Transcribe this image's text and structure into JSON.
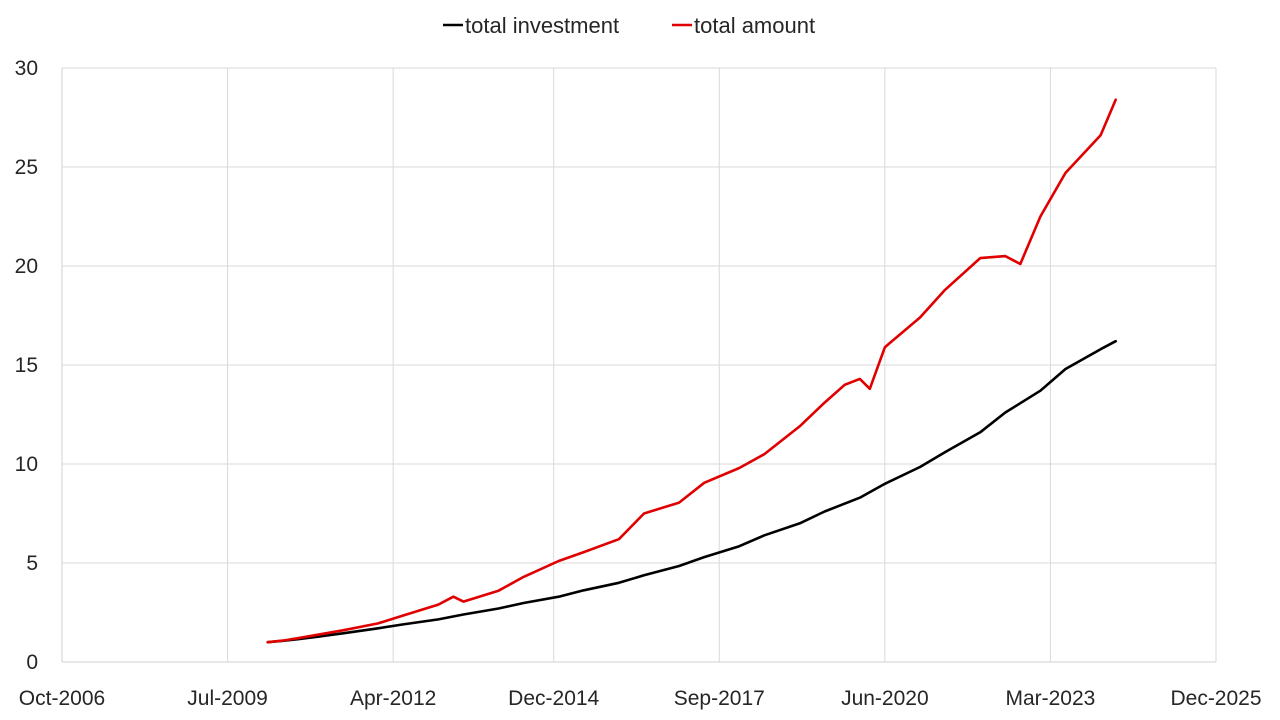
{
  "chart_data": {
    "type": "line",
    "title": "",
    "xlabel": "",
    "ylabel": "",
    "x_axis_type": "date",
    "xlim": [
      "2006-10",
      "2025-12"
    ],
    "ylim": [
      0,
      30
    ],
    "x_ticks": [
      "Oct-2006",
      "Jul-2009",
      "Apr-2012",
      "Dec-2014",
      "Sep-2017",
      "Jun-2020",
      "Mar-2023",
      "Dec-2025"
    ],
    "y_ticks": [
      0,
      5,
      10,
      15,
      20,
      25,
      30
    ],
    "grid": true,
    "legend_position": "top-center",
    "series": [
      {
        "name": "total investment",
        "color": "#000000",
        "x": [
          "2010-03",
          "2010-06",
          "2010-09",
          "2011-01",
          "2011-06",
          "2012-01",
          "2012-06",
          "2013-01",
          "2013-06",
          "2014-01",
          "2014-06",
          "2015-01",
          "2015-06",
          "2016-01",
          "2016-06",
          "2017-01",
          "2017-06",
          "2018-01",
          "2018-06",
          "2019-01",
          "2019-06",
          "2020-01",
          "2020-06",
          "2021-01",
          "2021-06",
          "2022-01",
          "2022-06",
          "2023-01",
          "2023-06",
          "2024-01",
          "2024-04"
        ],
        "y": [
          1.0,
          1.07,
          1.15,
          1.28,
          1.45,
          1.7,
          1.9,
          2.15,
          2.4,
          2.7,
          2.98,
          3.3,
          3.62,
          4.0,
          4.38,
          4.85,
          5.3,
          5.85,
          6.4,
          7.0,
          7.6,
          8.3,
          9.0,
          9.85,
          10.6,
          11.6,
          12.6,
          13.7,
          14.8,
          15.8,
          16.2
        ]
      },
      {
        "name": "total amount",
        "color": "#e00000",
        "x": [
          "2010-03",
          "2010-06",
          "2010-09",
          "2011-01",
          "2011-06",
          "2012-01",
          "2012-06",
          "2013-01",
          "2013-04",
          "2013-06",
          "2014-01",
          "2014-06",
          "2015-01",
          "2015-06",
          "2016-01",
          "2016-06",
          "2017-01",
          "2017-06",
          "2018-01",
          "2018-06",
          "2019-01",
          "2019-06",
          "2019-10",
          "2020-01",
          "2020-03",
          "2020-06",
          "2021-01",
          "2021-06",
          "2022-01",
          "2022-06",
          "2022-09",
          "2023-01",
          "2023-06",
          "2024-01",
          "2024-04"
        ],
        "y": [
          1.0,
          1.08,
          1.2,
          1.38,
          1.6,
          1.95,
          2.35,
          2.9,
          3.3,
          3.05,
          3.6,
          4.3,
          5.1,
          5.55,
          6.2,
          7.5,
          8.05,
          9.05,
          9.8,
          10.5,
          11.9,
          13.1,
          14.0,
          14.3,
          13.8,
          15.9,
          17.4,
          18.8,
          20.4,
          20.5,
          20.1,
          22.5,
          24.7,
          26.6,
          28.4
        ]
      }
    ]
  }
}
